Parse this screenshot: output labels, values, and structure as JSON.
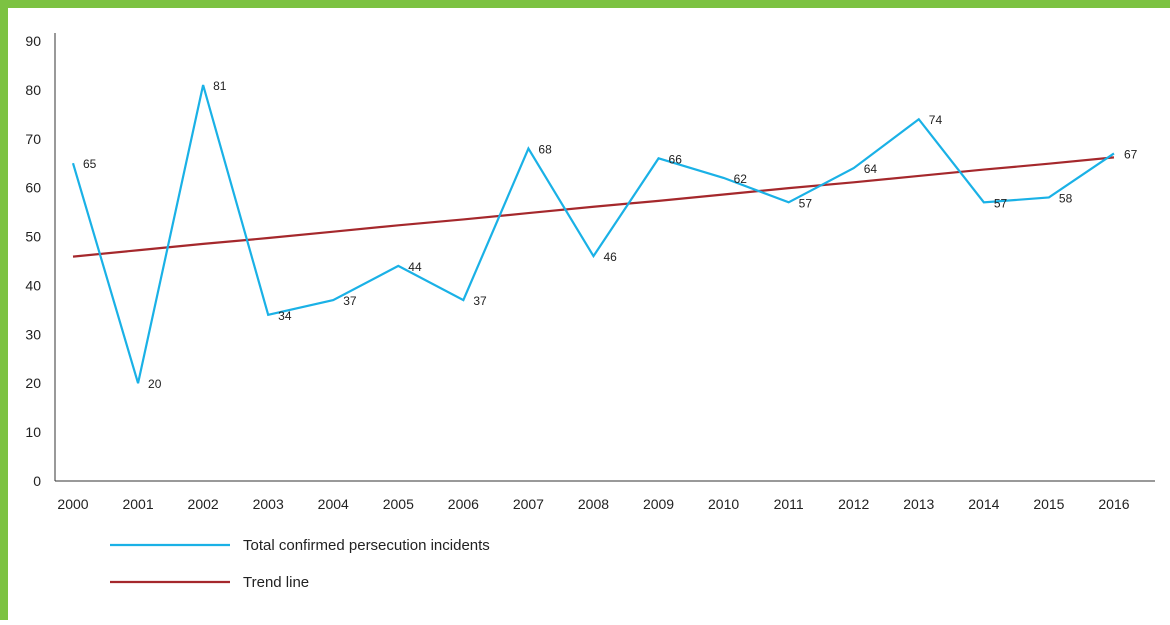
{
  "chart_data": {
    "type": "line",
    "title": "",
    "xlabel": "",
    "ylabel": "",
    "ylim": [
      0,
      90
    ],
    "y_ticks": [
      "0",
      "10",
      "20",
      "30",
      "40",
      "50",
      "60",
      "70",
      "80",
      "90"
    ],
    "x_ticks": [
      "2000",
      "2001",
      "2002",
      "2003",
      "2004",
      "2005",
      "2006",
      "2007",
      "2008",
      "2009",
      "2010",
      "2011",
      "2012",
      "2013",
      "2014",
      "2015",
      "2016"
    ],
    "categories": [
      "2000",
      "2001",
      "2002",
      "2003",
      "2004",
      "2005",
      "2006",
      "2007",
      "2008",
      "2009",
      "2010",
      "2011",
      "2012",
      "2013",
      "2014",
      "2015",
      "2016"
    ],
    "grid": false,
    "legend_position": "bottom-left",
    "series": [
      {
        "name": "Total confirmed persecution incidents",
        "color": "#1ab1e6",
        "values": [
          65,
          20,
          81,
          34,
          37,
          44,
          37,
          68,
          46,
          66,
          62,
          57,
          64,
          74,
          57,
          58,
          67
        ],
        "labels": [
          "65",
          "20",
          "81",
          "34",
          "37",
          "44",
          "37",
          "68",
          "46",
          "66",
          "62",
          "57",
          "64",
          "74",
          "57",
          "58",
          "67"
        ]
      },
      {
        "name": "Trend line",
        "color": "#a5282c",
        "values": [
          45.9,
          47.2,
          48.5,
          49.7,
          51.0,
          52.3,
          53.5,
          54.8,
          56.1,
          57.3,
          58.6,
          59.9,
          61.1,
          62.4,
          63.7,
          64.9,
          66.2
        ]
      }
    ]
  },
  "frame": {
    "accent_color": "#7cc242"
  }
}
